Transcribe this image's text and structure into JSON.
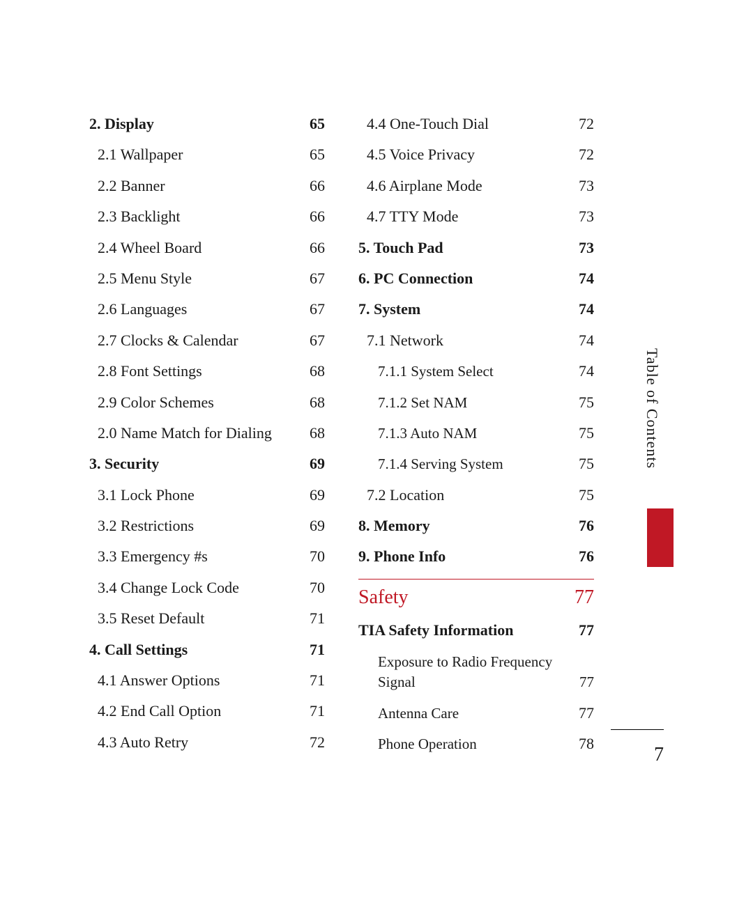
{
  "sidebar_label": "Table of Contents",
  "page_number": "7",
  "accent_color": "#c01825",
  "columns": {
    "left": [
      {
        "label": "2. Display",
        "page": "65",
        "style": "bold"
      },
      {
        "label": "2.1 Wallpaper",
        "page": "65",
        "style": "indent1"
      },
      {
        "label": "2.2 Banner",
        "page": "66",
        "style": "indent1"
      },
      {
        "label": "2.3 Backlight",
        "page": "66",
        "style": "indent1"
      },
      {
        "label": "2.4 Wheel Board",
        "page": "66",
        "style": "indent1"
      },
      {
        "label": "2.5 Menu Style",
        "page": "67",
        "style": "indent1"
      },
      {
        "label": "2.6 Languages",
        "page": "67",
        "style": "indent1"
      },
      {
        "label": "2.7 Clocks & Calendar",
        "page": "67",
        "style": "indent1"
      },
      {
        "label": "2.8 Font Settings",
        "page": "68",
        "style": "indent1"
      },
      {
        "label": "2.9 Color Schemes",
        "page": "68",
        "style": "indent1"
      },
      {
        "label": "2.0  Name Match for Dialing",
        "page": "68",
        "style": "indent1"
      },
      {
        "label": "3. Security",
        "page": "69",
        "style": "bold"
      },
      {
        "label": "3.1 Lock Phone",
        "page": "69",
        "style": "indent1"
      },
      {
        "label": "3.2 Restrictions",
        "page": "69",
        "style": "indent1"
      },
      {
        "label": "3.3 Emergency #s",
        "page": "70",
        "style": "indent1"
      },
      {
        "label": "3.4 Change Lock Code",
        "page": "70",
        "style": "indent1"
      },
      {
        "label": "3.5 Reset Default",
        "page": "71",
        "style": "indent1"
      },
      {
        "label": "4. Call Settings",
        "page": "71",
        "style": "bold"
      },
      {
        "label": "4.1 Answer Options",
        "page": "71",
        "style": "indent1"
      },
      {
        "label": "4.2 End Call Option",
        "page": "71",
        "style": "indent1"
      },
      {
        "label": "4.3 Auto Retry",
        "page": "72",
        "style": "indent1"
      }
    ],
    "right": [
      {
        "label": "4.4 One-Touch Dial",
        "page": "72",
        "style": "indent1"
      },
      {
        "label": "4.5 Voice Privacy",
        "page": "72",
        "style": "indent1"
      },
      {
        "label": "4.6 Airplane Mode",
        "page": "73",
        "style": "indent1"
      },
      {
        "label": "4.7 TTY Mode",
        "page": "73",
        "style": "indent1"
      },
      {
        "label": "5. Touch Pad",
        "page": "73",
        "style": "bold"
      },
      {
        "label": "6. PC Connection",
        "page": "74",
        "style": "bold"
      },
      {
        "label": "7. System",
        "page": "74",
        "style": "bold"
      },
      {
        "label": "7.1 Network",
        "page": "74",
        "style": "indent1"
      },
      {
        "label": "7.1.1 System Select",
        "page": "74",
        "style": "indent2"
      },
      {
        "label": "7.1.2 Set NAM",
        "page": "75",
        "style": "indent2"
      },
      {
        "label": "7.1.3 Auto NAM",
        "page": "75",
        "style": "indent2"
      },
      {
        "label": "7.1.4 Serving System",
        "page": "75",
        "style": "indent2"
      },
      {
        "label": "7.2 Location",
        "page": "75",
        "style": "indent1"
      },
      {
        "label": "8. Memory",
        "page": "76",
        "style": "bold"
      },
      {
        "label": "9. Phone Info",
        "page": "76",
        "style": "bold"
      },
      {
        "label": "Safety",
        "page": "77",
        "style": "section"
      },
      {
        "label": "TIA Safety Information",
        "page": "77",
        "style": "bold"
      },
      {
        "label": "Exposure to Radio Frequency Signal",
        "page": "77",
        "style": "wrap"
      },
      {
        "label": "Antenna Care",
        "page": "77",
        "style": "indent3"
      },
      {
        "label": "Phone Operation",
        "page": "78",
        "style": "indent3"
      }
    ]
  }
}
